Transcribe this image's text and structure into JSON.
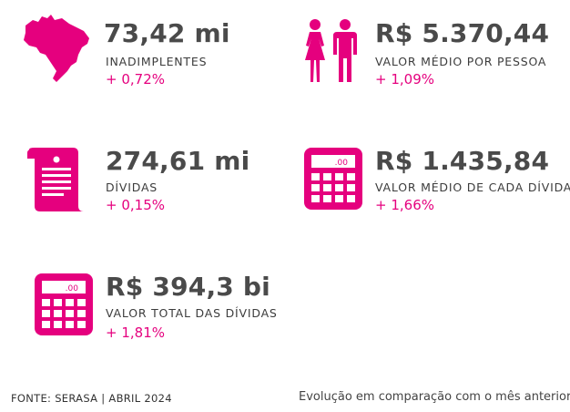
{
  "accent_color": "#e5007e",
  "stats": {
    "inadimplentes": {
      "value": "73,42 mi",
      "label": "INADIMPLENTES",
      "change": "+ 0,72%",
      "icon": "brazil-map-icon"
    },
    "valor_medio_pessoa": {
      "value": "R$ 5.370,44",
      "label": "VALOR MÉDIO POR PESSOA",
      "change": "+ 1,09%",
      "icon": "people-icon"
    },
    "dividas": {
      "value": "274,61 mi",
      "label": "DÍVIDAS",
      "change": "+ 0,15%",
      "icon": "document-icon"
    },
    "valor_medio_divida": {
      "value": "R$ 1.435,84",
      "label": "VALOR MÉDIO DE CADA DÍVIDA",
      "change": "+ 1,66%",
      "icon": "calculator-icon",
      "display": ".00"
    },
    "valor_total": {
      "value": "R$ 394,3 bi",
      "label": "VALOR TOTAL DAS DÍVIDAS",
      "change": "+ 1,81%",
      "icon": "calculator-icon",
      "display": ".00"
    }
  },
  "footer": {
    "source": "FONTE: SERASA | ABRIL 2024",
    "note": "Evolução em comparação com o mês anterior"
  }
}
